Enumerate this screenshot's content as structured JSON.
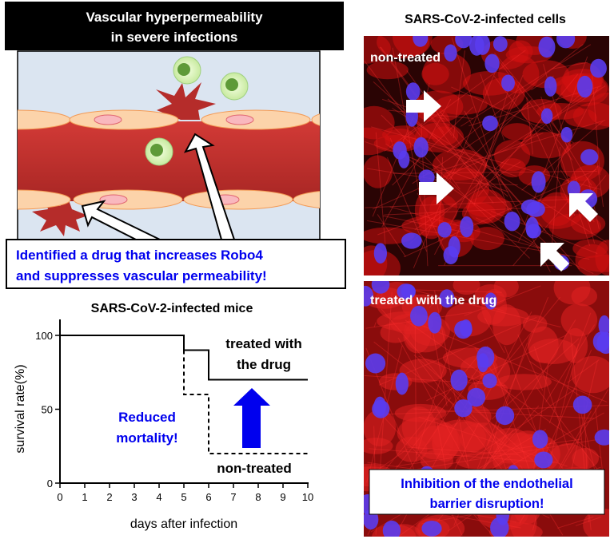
{
  "left_panel": {
    "title_line1": "Vascular hyperpermeability",
    "title_line2": "in severe infections",
    "callout_line1": "Identified a drug that increases Robo4",
    "callout_line2": "and suppresses vascular permeability!"
  },
  "right_panel": {
    "title": "SARS-CoV-2-infected cells",
    "top_image_label": "non-treated",
    "bottom_image_label": "treated with the drug",
    "bottom_callout_line1": "Inhibition of the endothelial",
    "bottom_callout_line2": "barrier disruption!"
  },
  "colors": {
    "accent_blue": "#0000ee",
    "vessel_red": "#c0302e",
    "cell_peach": "#fcd3aa",
    "cell_stain_red": "#d01010",
    "nuclei_blue": "#5a3cf0"
  },
  "chart_data": {
    "type": "line",
    "title": "SARS-CoV-2-infected mice",
    "xlabel": "days after infection",
    "ylabel": "survival  rate(%)",
    "xlim": [
      0,
      10
    ],
    "ylim": [
      0,
      100
    ],
    "xticks": [
      "0",
      "1",
      "2",
      "3",
      "4",
      "5",
      "6",
      "7",
      "8",
      "9",
      "10"
    ],
    "yticks": [
      "0",
      "50",
      "100"
    ],
    "step": true,
    "grid": false,
    "series": [
      {
        "name": "treated with the drug",
        "name_line1": "treated with",
        "name_line2": "the drug",
        "style": "solid",
        "x": [
          0,
          5,
          6,
          10
        ],
        "y": [
          100,
          90,
          70,
          70
        ]
      },
      {
        "name": "non-treated",
        "style": "dashed",
        "x": [
          0,
          5,
          6,
          10
        ],
        "y": [
          100,
          60,
          20,
          20
        ]
      }
    ],
    "annotation_line1": "Reduced",
    "annotation_line2": "mortality!"
  }
}
